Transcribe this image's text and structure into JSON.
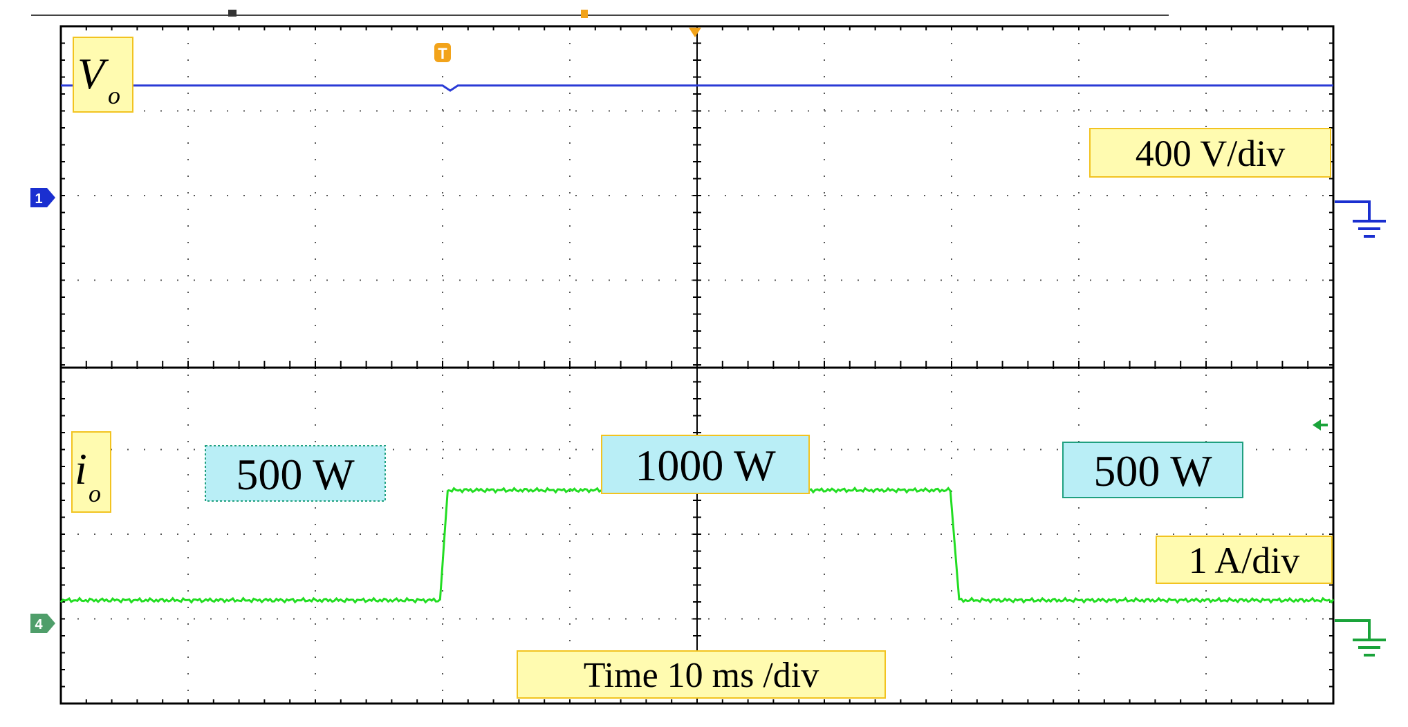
{
  "chart_data": {
    "type": "line",
    "time_per_div_ms": 10,
    "x_divisions": 10,
    "grid": true,
    "channels": [
      {
        "name": "V",
        "name_subscript": "o",
        "scale_label": "400 V/div",
        "color": "#2a3bd6",
        "marker": "1",
        "note": "constant output voltage with a tiny dip near the step",
        "x_ms": [
          0,
          30,
          30.6,
          31.2,
          70,
          100
        ],
        "y_div": [
          3.3,
          3.3,
          3.24,
          3.3,
          3.3,
          3.3
        ]
      },
      {
        "name": "i",
        "name_subscript": "o",
        "scale_label": "1 A/div",
        "color": "#22dd22",
        "marker": "4",
        "x_ms": [
          0,
          29.8,
          30.4,
          69.9,
          70.6,
          100
        ],
        "y_div": [
          1.22,
          1.22,
          2.52,
          2.52,
          1.22,
          1.22
        ],
        "segments": [
          {
            "label": "500 W"
          },
          {
            "label": "1000 W"
          },
          {
            "label": "500 W"
          }
        ]
      }
    ],
    "time_label": "Time 10 ms /div",
    "trigger_marker": "T"
  }
}
